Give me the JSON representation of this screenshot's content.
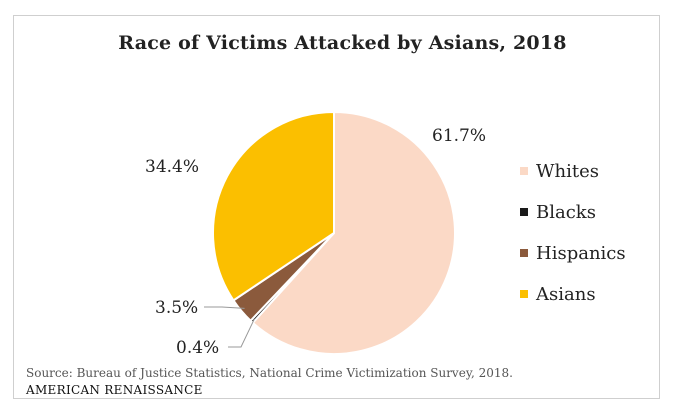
{
  "chart_data": {
    "type": "pie",
    "title": "Race of Victims Attacked by Asians, 2018",
    "categories": [
      "Whites",
      "Blacks",
      "Hispanics",
      "Asians"
    ],
    "values": [
      61.7,
      0.4,
      3.5,
      34.4
    ],
    "value_labels": [
      "61.7%",
      "0.4%",
      "3.5%",
      "34.4%"
    ],
    "colors": [
      "#fbd9c6",
      "#1a1a1a",
      "#8b5a3c",
      "#fbbf00"
    ],
    "legend_position": "right",
    "source": "Source: Bureau of Justice Statistics, National Crime Victimization Survey, 2018.",
    "brand": "AMERICAN RENAISSANCE"
  }
}
